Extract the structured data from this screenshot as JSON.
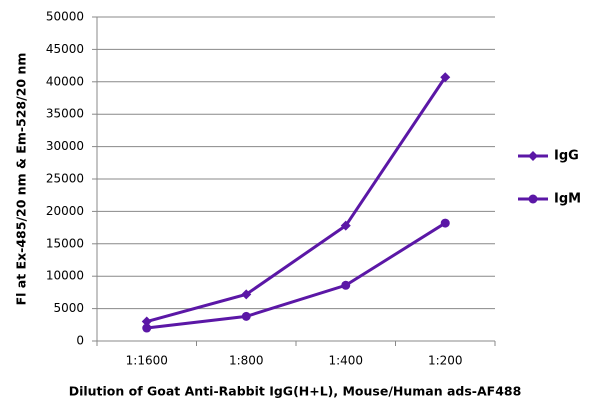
{
  "chart_data": {
    "type": "line",
    "y_label": "Fl at Ex-485/20 nm & Em-528/20 nm",
    "x_label": "Dilution of Goat Anti-Rabbit IgG(H+L), Mouse/Human ads-AF488",
    "categories": [
      "1:1600",
      "1:800",
      "1:400",
      "1:200"
    ],
    "series": [
      {
        "name": "IgG",
        "color": "#5b17a6",
        "marker": "diamond",
        "values": [
          3000,
          7200,
          17800,
          40700
        ]
      },
      {
        "name": "IgM",
        "color": "#5b17a6",
        "marker": "circle",
        "values": [
          2000,
          3800,
          8600,
          18200
        ]
      }
    ],
    "ylim": [
      0,
      50000
    ],
    "yticks": [
      0,
      5000,
      10000,
      15000,
      20000,
      25000,
      30000,
      35000,
      40000,
      45000,
      50000
    ],
    "grid": true,
    "legend": "right"
  }
}
